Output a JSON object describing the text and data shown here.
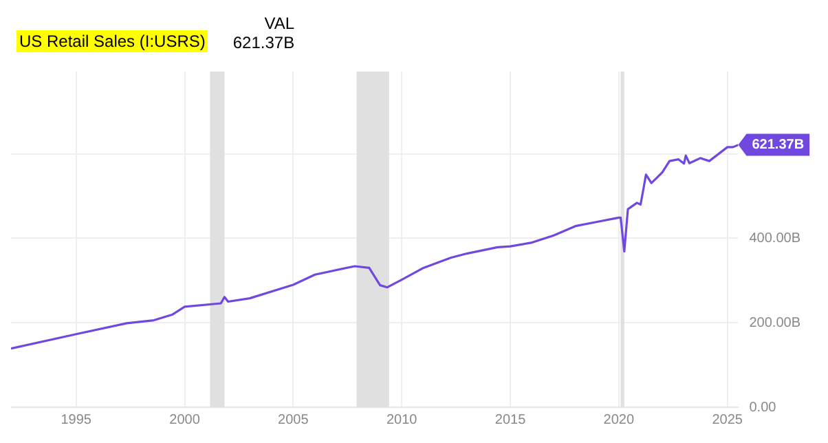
{
  "chart_data": {
    "type": "line",
    "title": "US Retail Sales (I:USRS)",
    "annotations": [
      "VAL",
      "621.37B",
      {
        "text": "621.37B",
        "x": "2025-07",
        "y": 621.37
      }
    ],
    "series": [
      {
        "color": "#7048e0",
        "x": [
          "1992-01",
          "1995-01",
          "1997-05",
          "1998-08",
          "1999-06",
          "2000-01",
          "2001-09",
          "2001-11",
          "2002-01",
          "2003-01",
          "2005-01",
          "2006-01",
          "2007-11",
          "2008-07",
          "2009-01",
          "2009-05",
          "2010-01",
          "2011-01",
          "2012-04",
          "2013-01",
          "2014-06",
          "2015-01",
          "2016-01",
          "2017-01",
          "2018-01",
          "2019-01",
          "2020-01",
          "2020-02",
          "2020-04",
          "2020-06",
          "2020-11",
          "2021-01",
          "2021-02",
          "2021-04",
          "2021-07",
          "2022-01",
          "2022-05",
          "2022-10",
          "2023-01",
          "2023-02",
          "2023-04",
          "2023-10",
          "2024-03",
          "2025-01",
          "2025-04",
          "2025-07"
        ],
        "values": [
          139,
          173,
          199,
          206,
          219,
          238,
          246,
          261,
          250,
          258,
          290,
          314,
          334,
          330,
          289,
          284,
          302,
          330,
          354,
          364,
          379,
          381,
          390,
          407,
          429,
          439,
          449,
          449,
          369,
          469,
          484,
          480,
          503,
          551,
          531,
          556,
          583,
          587,
          577,
          596,
          578,
          590,
          583,
          616,
          616,
          621
        ]
      }
    ],
    "xlim": [
      "1992-01",
      "2025-07"
    ],
    "xticks": [
      "1995",
      "2000",
      "2005",
      "2010",
      "2015",
      "2020",
      "2025"
    ],
    "ylim": [
      0,
      795
    ],
    "yticks": [
      {
        "value": 0,
        "label": "0.00"
      },
      {
        "value": 200,
        "label": "200.00B"
      },
      {
        "value": 400,
        "label": "400.00B"
      },
      {
        "value": 600,
        "label": null
      }
    ],
    "bands": [
      {
        "axis": "x",
        "from": "2001-03",
        "to": "2001-11",
        "color": "#e0e0e0"
      },
      {
        "axis": "x",
        "from": "2007-12",
        "to": "2009-06",
        "color": "#e0e0e0"
      },
      {
        "axis": "x",
        "from": "2020-02",
        "to": "2020-04",
        "color": "#e0e0e0"
      }
    ],
    "grid": true,
    "legend": false,
    "marker": "none",
    "line_style": "solid"
  }
}
